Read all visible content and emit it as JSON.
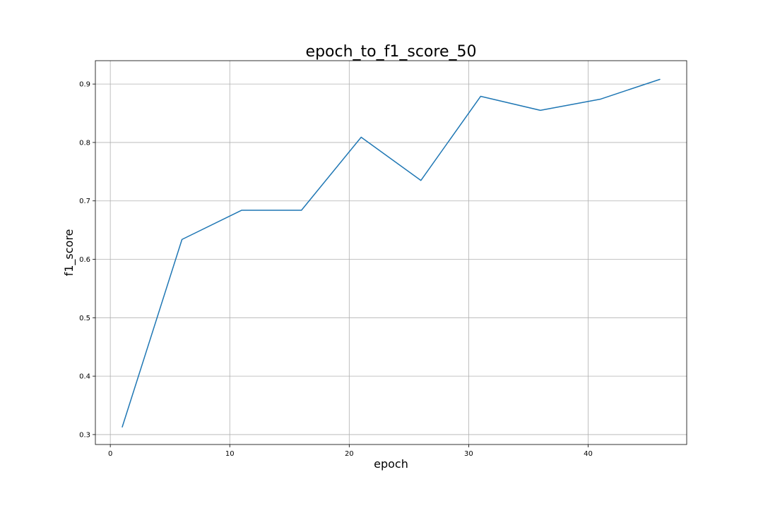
{
  "chart_data": {
    "type": "line",
    "title": "epoch_to_f1_score_50",
    "xlabel": "epoch",
    "ylabel": "f1_score",
    "xlim": [
      -1.25,
      48.25
    ],
    "ylim": [
      0.283,
      0.94
    ],
    "grid": true,
    "x_ticks": [
      0,
      10,
      20,
      30,
      40
    ],
    "x_tick_labels": [
      "0",
      "10",
      "20",
      "30",
      "40"
    ],
    "y_ticks": [
      0.3,
      0.4,
      0.5,
      0.6,
      0.7,
      0.8,
      0.9
    ],
    "y_tick_labels": [
      "0.3",
      "0.4",
      "0.5",
      "0.6",
      "0.7",
      "0.8",
      "0.9"
    ],
    "series": [
      {
        "color": "#1f77b4",
        "x": [
          1,
          6,
          11,
          16,
          21,
          26,
          31,
          36,
          41,
          46
        ],
        "y": [
          0.313,
          0.634,
          0.684,
          0.684,
          0.809,
          0.735,
          0.879,
          0.855,
          0.874,
          0.908
        ]
      }
    ]
  }
}
